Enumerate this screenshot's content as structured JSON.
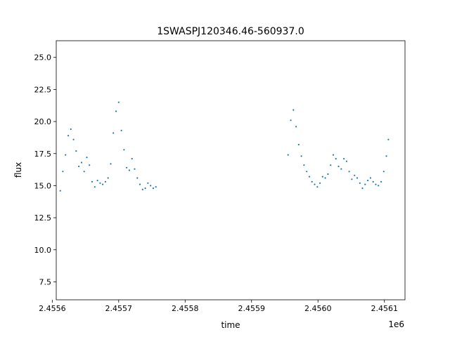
{
  "chart_data": {
    "type": "scatter",
    "title": "1SWASPJ120346.46-560937.0",
    "xlabel": "time",
    "ylabel": "flux",
    "x_offset_label": "1e6",
    "xlim": [
      2455606,
      2456131
    ],
    "ylim": [
      6.1,
      26.3
    ],
    "x_ticks": [
      2455600,
      2455700,
      2455800,
      2455900,
      2456000,
      2456100
    ],
    "x_tick_labels": [
      "2.4556",
      "2.4557",
      "2.4558",
      "2.4559",
      "2.4560",
      "2.4561"
    ],
    "y_ticks": [
      7.5,
      10.0,
      12.5,
      15.0,
      17.5,
      20.0,
      22.5,
      25.0
    ],
    "y_tick_labels": [
      "7.5",
      "10.0",
      "12.5",
      "15.0",
      "17.5",
      "20.0",
      "22.5",
      "25.0"
    ],
    "grid": false,
    "marker_color": "#1f77b4",
    "series": [
      {
        "x": [
          2455612,
          2455616,
          2455620,
          2455624,
          2455628,
          2455632,
          2455636,
          2455640,
          2455644,
          2455648,
          2455652,
          2455656,
          2455660,
          2455664,
          2455668,
          2455672,
          2455676,
          2455680,
          2455684,
          2455688,
          2455692,
          2455696,
          2455700,
          2455704,
          2455708,
          2455712,
          2455716,
          2455720,
          2455724,
          2455728,
          2455732,
          2455736,
          2455740,
          2455744,
          2455748,
          2455752,
          2455756,
          2455955,
          2455959,
          2455963,
          2455967,
          2455971,
          2455975,
          2455979,
          2455983,
          2455987,
          2455991,
          2455995,
          2455999,
          2456003,
          2456007,
          2456011,
          2456015,
          2456019,
          2456023,
          2456027,
          2456031,
          2456035,
          2456039,
          2456043,
          2456047,
          2456051,
          2456055,
          2456059,
          2456063,
          2456067,
          2456071,
          2456075,
          2456079,
          2456083,
          2456087,
          2456091,
          2456095,
          2456099,
          2456103,
          2456106
        ],
        "y": [
          14.6,
          16.1,
          17.4,
          18.9,
          19.4,
          18.6,
          17.7,
          16.5,
          16.8,
          16.1,
          17.2,
          16.6,
          15.3,
          14.9,
          15.4,
          15.2,
          15.1,
          15.3,
          15.6,
          16.7,
          19.1,
          20.8,
          21.5,
          19.3,
          17.8,
          16.4,
          16.2,
          17.1,
          16.3,
          15.6,
          15.1,
          14.7,
          14.8,
          15.2,
          15.0,
          14.8,
          14.9,
          17.4,
          20.1,
          20.9,
          19.6,
          18.2,
          17.3,
          16.6,
          16.1,
          15.7,
          15.3,
          15.1,
          14.9,
          15.2,
          15.7,
          15.6,
          15.9,
          16.6,
          17.4,
          17.1,
          16.5,
          16.3,
          17.1,
          16.9,
          16.1,
          15.5,
          15.8,
          15.6,
          15.2,
          14.8,
          15.1,
          15.4,
          15.6,
          15.3,
          15.1,
          15.0,
          15.3,
          16.1,
          17.3,
          18.6
        ]
      }
    ]
  }
}
